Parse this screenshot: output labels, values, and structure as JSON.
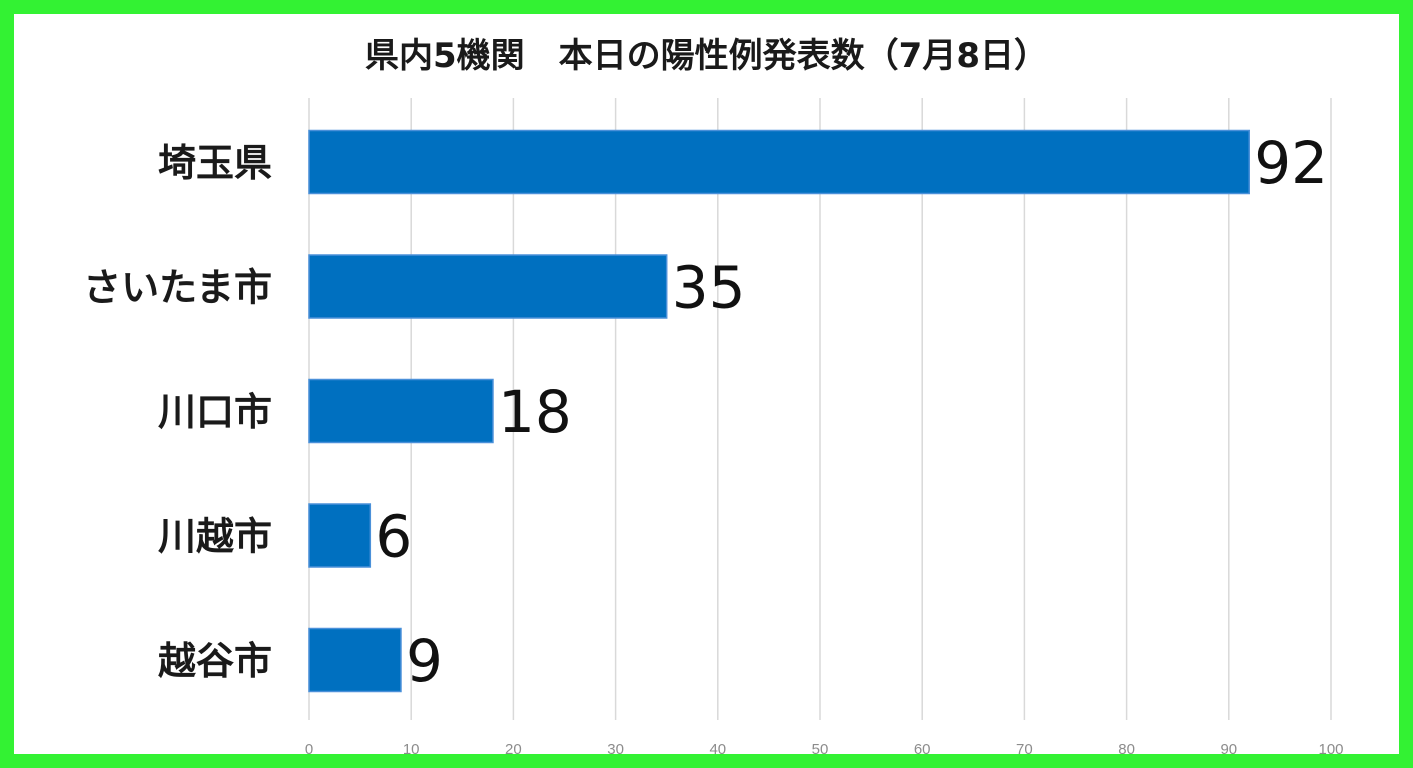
{
  "chart_data": {
    "type": "bar",
    "orientation": "horizontal",
    "title": "県内5機関　本日の陽性例発表数（7月8日）",
    "categories": [
      "埼玉県",
      "さいたま市",
      "川口市",
      "川越市",
      "越谷市"
    ],
    "values": [
      92,
      35,
      18,
      6,
      9
    ],
    "xlim": [
      0,
      100
    ],
    "x_ticks": [
      "0",
      "10",
      "20",
      "30",
      "40",
      "50",
      "60",
      "70",
      "80",
      "90",
      "100"
    ],
    "grid": "vertical",
    "legend": "none",
    "bar_color": "#0070c0",
    "bar_edge_color": "#4a90d9",
    "frame_color": "#33f233"
  }
}
